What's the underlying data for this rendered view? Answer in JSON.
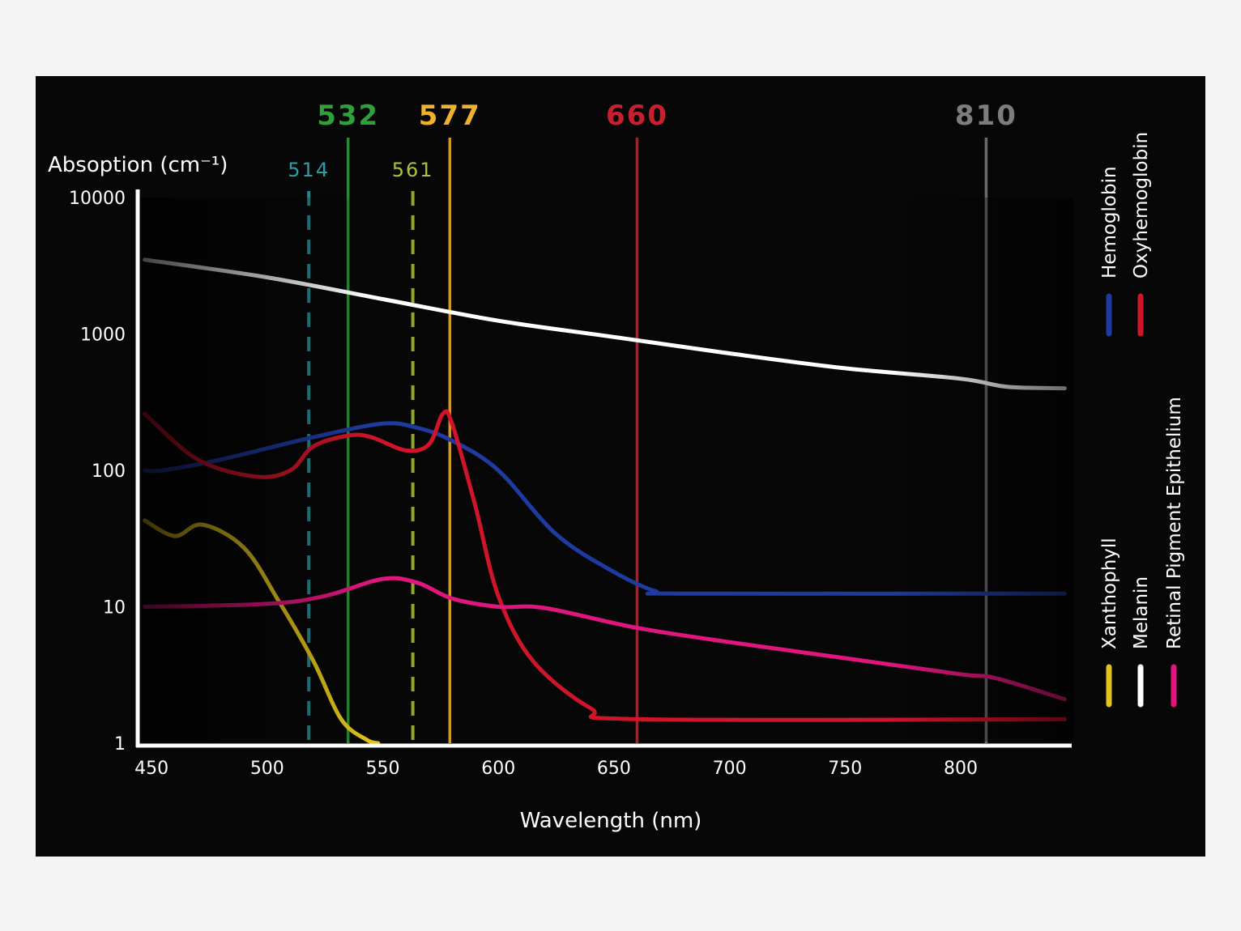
{
  "chart_data": {
    "type": "line",
    "ylabel": "Absoption (cm⁻¹)",
    "xlabel": "Wavelength (nm)",
    "xlim": [
      444,
      848
    ],
    "ylim": [
      1,
      10000
    ],
    "yscale": "log",
    "x_ticks": [
      450,
      500,
      550,
      600,
      650,
      700,
      750,
      800
    ],
    "y_ticks": [
      {
        "value": 1,
        "label": "1"
      },
      {
        "value": 10,
        "label": "10"
      },
      {
        "value": 100,
        "label": "100"
      },
      {
        "value": 1000,
        "label": "1000"
      },
      {
        "value": 10000,
        "label": "10000"
      }
    ],
    "laser_lines": [
      {
        "label": "514",
        "wavelength": 518,
        "color": "#2a9fa5",
        "style": "dashed"
      },
      {
        "label": "532",
        "wavelength": 535,
        "color": "#2fa03c",
        "style": "solid"
      },
      {
        "label": "561",
        "wavelength": 563,
        "color": "#a7c43a",
        "style": "dashed"
      },
      {
        "label": "577",
        "wavelength": 579,
        "color": "#f0b12b",
        "style": "solid"
      },
      {
        "label": "660",
        "wavelength": 660,
        "color": "#c8202e",
        "style": "solid"
      },
      {
        "label": "810",
        "wavelength": 811,
        "color": "#7d7d7d",
        "style": "solid"
      }
    ],
    "series": [
      {
        "name": "Melanin",
        "color": "#ffffff",
        "x": [
          447,
          500,
          550,
          600,
          650,
          700,
          750,
          800,
          820,
          845
        ],
        "y": [
          3500,
          2600,
          1800,
          1250,
          950,
          720,
          560,
          470,
          410,
          400
        ]
      },
      {
        "name": "Hemoglobin",
        "color": "#1f3aa0",
        "x": [
          447,
          455,
          480,
          520,
          550,
          565,
          580,
          600,
          625,
          650,
          668,
          680,
          845
        ],
        "y": [
          100,
          100,
          120,
          175,
          220,
          205,
          165,
          100,
          34,
          18,
          13,
          12.5,
          12.5
        ]
      },
      {
        "name": "Oxyhemoglobin",
        "color": "#d0142a",
        "x": [
          447,
          470,
          495,
          510,
          520,
          535,
          545,
          560,
          570,
          576,
          580,
          590,
          600,
          615,
          640,
          660,
          845
        ],
        "y": [
          260,
          120,
          90,
          100,
          150,
          180,
          175,
          140,
          155,
          260,
          220,
          55,
          12,
          4,
          1.8,
          1.5,
          1.5
        ]
      },
      {
        "name": "Xanthophyll",
        "color": "#e2c41a",
        "x": [
          447,
          460,
          472,
          490,
          505,
          520,
          532,
          543,
          548
        ],
        "y": [
          43,
          33,
          40,
          27,
          11,
          4,
          1.5,
          1.06,
          1.0
        ]
      },
      {
        "name": "Retinal Pigment Epithelium",
        "color": "#e0167e",
        "x": [
          447,
          500,
          525,
          550,
          565,
          580,
          600,
          620,
          660,
          700,
          750,
          800,
          815,
          845
        ],
        "y": [
          10,
          10.5,
          12,
          16,
          15,
          11.5,
          10,
          9.8,
          7,
          5.5,
          4.2,
          3.2,
          3.0,
          2.1
        ]
      }
    ]
  }
}
